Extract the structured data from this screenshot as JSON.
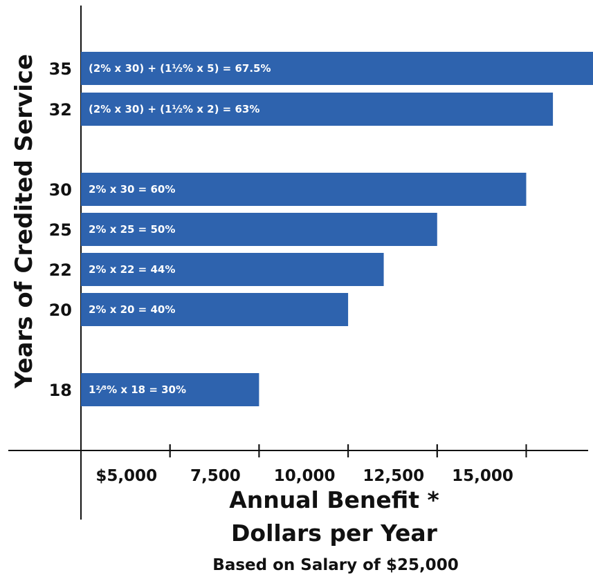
{
  "chart_data": {
    "type": "bar",
    "orientation": "horizontal",
    "categories": [
      "35",
      "32",
      "30",
      "25",
      "22",
      "20",
      "18"
    ],
    "values": [
      16875,
      15750,
      15000,
      12500,
      11000,
      10000,
      7500
    ],
    "bar_labels": [
      "(2% x 30) + (1½% x 5) = 67.5%",
      "(2% x 30) + (1½% x 2) = 63%",
      "2% x 30 = 60%",
      "2% x 25 = 50%",
      "2% x 22 = 44%",
      "2% x 20 = 40%",
      "1²⁄³% x 18 = 30%"
    ],
    "xticks": [
      5000,
      7500,
      10000,
      12500,
      15000
    ],
    "xtick_labels": [
      "$5,000",
      "7,500",
      "10,000",
      "12,500",
      "15,000"
    ],
    "xlim": [
      2500,
      16875
    ],
    "ylabel": "Years of Credited Service",
    "xlabel_line1": "Annual Benefit *",
    "xlabel_line2": "Dollars per Year",
    "xlabel_line3": "Based on Salary of $25,000",
    "grid": false,
    "bar_color": "#2e63ae"
  }
}
